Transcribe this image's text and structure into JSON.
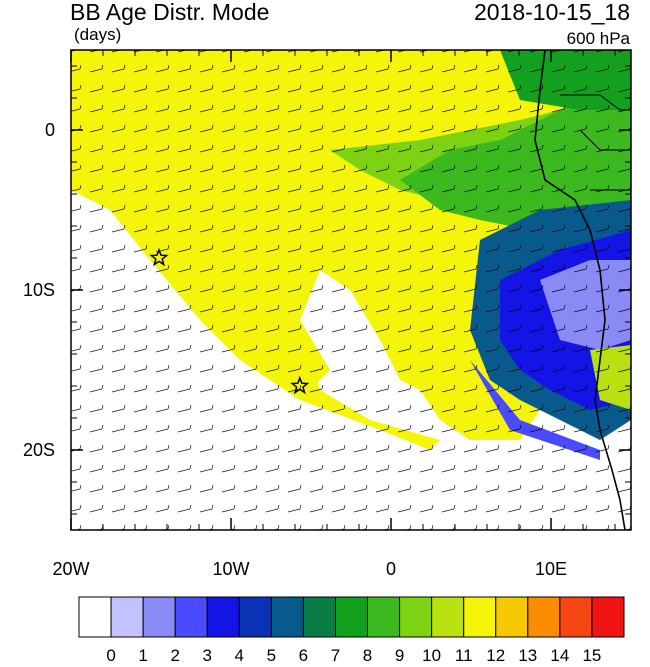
{
  "title": "BB Age Distr. Mode",
  "datetime": "2018-10-15_18",
  "units_label": "(days)",
  "level_label": "600 hPa",
  "map": {
    "lon_range": [
      -20,
      15
    ],
    "lat_range": [
      -25,
      5
    ],
    "x_ticks": [
      {
        "lon": -20,
        "label": "20W"
      },
      {
        "lon": -10,
        "label": "10W"
      },
      {
        "lon": 0,
        "label": "0"
      },
      {
        "lon": 10,
        "label": "10E"
      }
    ],
    "y_ticks": [
      {
        "lat": 0,
        "label": "0"
      },
      {
        "lat": -10,
        "label": "10S"
      },
      {
        "lat": -20,
        "label": "20S"
      }
    ],
    "markers": [
      {
        "name": "star-marker-1",
        "lon": -14.5,
        "lat": -8.0
      },
      {
        "name": "star-marker-2",
        "lon": -5.7,
        "lat": -16.0
      }
    ]
  },
  "colorbar": {
    "labels": [
      "0",
      "1",
      "2",
      "3",
      "4",
      "5",
      "6",
      "7",
      "8",
      "9",
      "10",
      "11",
      "12",
      "13",
      "14",
      "15"
    ],
    "colors": [
      "#ffffff",
      "#c2c2ff",
      "#8a8af5",
      "#4a4aff",
      "#1414e6",
      "#0a32b4",
      "#085a8c",
      "#0a7d46",
      "#12a01e",
      "#3cb91e",
      "#7dd214",
      "#b9e10f",
      "#f5f50a",
      "#f5c800",
      "#fa8c00",
      "#f54614",
      "#f01414"
    ]
  }
}
